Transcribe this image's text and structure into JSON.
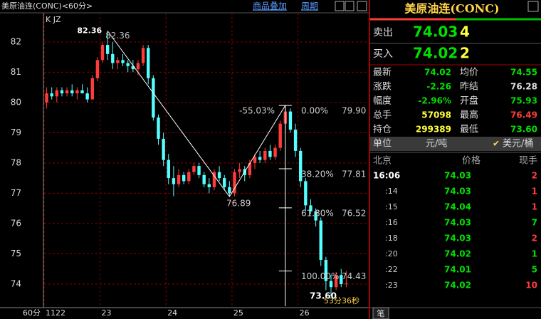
{
  "toolbar": {
    "title": "美原油连(CONC)<60分>",
    "overlay": "商品叠加",
    "period": "周期"
  },
  "chart_data": {
    "type": "candlestick",
    "indicator": "K JZ",
    "period_label": "60分",
    "ylim": [
      73.27,
      82.96
    ],
    "yticks": [
      74,
      75,
      76,
      77,
      78,
      79,
      80,
      81,
      82
    ],
    "grid": true,
    "xticks": [
      {
        "value": 0,
        "label": "1122"
      },
      {
        "value": 11,
        "label": "23"
      },
      {
        "value": 24,
        "label": "24"
      },
      {
        "value": 37,
        "label": "25"
      },
      {
        "value": 50,
        "label": "26"
      }
    ],
    "up_color": "#ff3c3c",
    "down_color": "#54ffff",
    "candles": [
      [
        80.0,
        80.5,
        79.8,
        80.3
      ],
      [
        80.3,
        80.5,
        80.1,
        80.2
      ],
      [
        80.2,
        80.5,
        80.0,
        80.4
      ],
      [
        80.4,
        80.5,
        80.2,
        80.3
      ],
      [
        80.3,
        80.5,
        80.2,
        80.4
      ],
      [
        80.4,
        80.6,
        80.2,
        80.3
      ],
      [
        80.3,
        80.5,
        80.1,
        80.4
      ],
      [
        80.4,
        80.6,
        80.3,
        80.3
      ],
      [
        80.3,
        80.5,
        80.0,
        80.1
      ],
      [
        80.1,
        80.9,
        80.1,
        80.8
      ],
      [
        80.8,
        81.5,
        80.7,
        81.4
      ],
      [
        81.4,
        82.0,
        81.3,
        81.9
      ],
      [
        81.9,
        82.36,
        81.4,
        81.6
      ],
      [
        81.6,
        82.0,
        81.1,
        81.3
      ],
      [
        81.3,
        81.5,
        81.1,
        81.4
      ],
      [
        81.4,
        81.6,
        81.2,
        81.3
      ],
      [
        81.3,
        81.4,
        81.0,
        81.2
      ],
      [
        81.2,
        81.4,
        81.0,
        81.1
      ],
      [
        81.1,
        81.4,
        80.9,
        81.3
      ],
      [
        81.3,
        81.9,
        81.2,
        81.8
      ],
      [
        81.8,
        81.9,
        80.6,
        80.8
      ],
      [
        80.8,
        80.9,
        79.4,
        79.5
      ],
      [
        79.5,
        79.6,
        78.6,
        78.8
      ],
      [
        78.8,
        79.0,
        77.9,
        78.1
      ],
      [
        78.1,
        78.3,
        77.3,
        77.5
      ],
      [
        77.5,
        77.9,
        76.9,
        77.3
      ],
      [
        77.3,
        77.8,
        77.2,
        77.6
      ],
      [
        77.6,
        77.7,
        77.3,
        77.4
      ],
      [
        77.4,
        77.8,
        77.3,
        77.7
      ],
      [
        77.7,
        78.0,
        77.6,
        77.9
      ],
      [
        77.9,
        78.0,
        77.5,
        77.6
      ],
      [
        77.6,
        77.7,
        77.2,
        77.3
      ],
      [
        77.3,
        77.5,
        77.0,
        77.2
      ],
      [
        77.2,
        77.8,
        77.1,
        77.7
      ],
      [
        77.7,
        77.9,
        77.4,
        77.5
      ],
      [
        77.5,
        77.6,
        77.1,
        77.2
      ],
      [
        77.2,
        77.4,
        76.89,
        77.0
      ],
      [
        77.0,
        77.8,
        76.9,
        77.7
      ],
      [
        77.7,
        78.0,
        77.5,
        77.8
      ],
      [
        77.8,
        77.9,
        77.4,
        77.6
      ],
      [
        77.6,
        78.1,
        77.5,
        78.0
      ],
      [
        78.0,
        78.3,
        77.8,
        78.2
      ],
      [
        78.2,
        78.4,
        78.0,
        78.1
      ],
      [
        78.1,
        78.5,
        78.0,
        78.4
      ],
      [
        78.4,
        78.6,
        78.1,
        78.2
      ],
      [
        78.2,
        78.6,
        78.1,
        78.5
      ],
      [
        78.5,
        79.4,
        78.4,
        79.3
      ],
      [
        79.3,
        79.9,
        79.0,
        79.7
      ],
      [
        79.7,
        79.8,
        79.0,
        79.1
      ],
      [
        79.1,
        79.3,
        78.2,
        78.4
      ],
      [
        78.4,
        78.5,
        77.2,
        77.4
      ],
      [
        77.4,
        77.5,
        76.4,
        76.6
      ],
      [
        76.6,
        76.8,
        76.3,
        76.4
      ],
      [
        76.4,
        76.5,
        75.9,
        76.1
      ],
      [
        76.1,
        76.2,
        74.6,
        74.8
      ],
      [
        74.8,
        74.9,
        73.8,
        74.1
      ],
      [
        74.1,
        74.3,
        73.6,
        73.9
      ],
      [
        73.9,
        74.4,
        73.8,
        74.3
      ],
      [
        74.3,
        74.5,
        73.9,
        74.0
      ],
      [
        74.0,
        74.43,
        73.9,
        74.02
      ]
    ],
    "zigzag_x": [
      12,
      36,
      47
    ],
    "zigzag_y": [
      82.36,
      76.89,
      79.9
    ],
    "zigzag_pct": "-55.03%",
    "high_marks": [
      82.36,
      82.36
    ],
    "low_mark": 76.89,
    "bottom_mark": {
      "value": 73.6,
      "label": "73.60"
    },
    "countdown": "53分36秒",
    "fib_x": 47,
    "fib": [
      {
        "pct": "0.00%",
        "price": {
          "value": 79.9,
          "label": "79.90"
        }
      },
      {
        "pct": "38.20%",
        "price": 77.81
      },
      {
        "pct": "61.80%",
        "price": 76.52
      },
      {
        "pct": "100.00%",
        "price": 74.43
      }
    ]
  },
  "quote": {
    "title": "美原油连(CONC)",
    "ask": {
      "label": "卖出",
      "price": "74.03",
      "size": "4"
    },
    "bid": {
      "label": "买入",
      "price": "74.02",
      "size": "2"
    },
    "stats": [
      [
        "最新",
        "74.02",
        "均价",
        "74.55"
      ],
      [
        "涨跌",
        "-2.26",
        "昨结",
        "76.28"
      ],
      [
        "幅度",
        "-2.96%",
        "开盘",
        "75.93"
      ],
      [
        "总手",
        "57098",
        "最高",
        "76.49"
      ],
      [
        "持仓",
        "299389",
        "最低",
        "73.60"
      ]
    ],
    "unit": {
      "label": "单位",
      "cny": "元/吨",
      "usd": "美元/桶"
    }
  },
  "trades": {
    "headers": [
      "北京",
      "价格",
      "现手"
    ],
    "rows": [
      [
        "16:06",
        "74.03",
        "2"
      ],
      [
        ":14",
        "74.03",
        "1"
      ],
      [
        ":15",
        "74.04",
        "1"
      ],
      [
        ":16",
        "74.03",
        "7"
      ],
      [
        ":18",
        "74.03",
        "2"
      ],
      [
        ":20",
        "74.02",
        "1"
      ],
      [
        ":22",
        "74.01",
        "5"
      ],
      [
        ":23",
        "74.02",
        "10"
      ]
    ],
    "tab": "笔"
  }
}
